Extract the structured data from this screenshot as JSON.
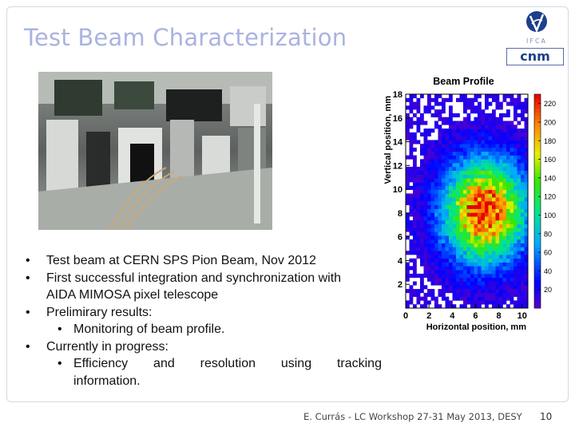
{
  "slide": {
    "title": "Test Beam Characterization",
    "footer": "E. Currás -  LC Workshop 27-31 May 2013, DESY",
    "page_number": "10",
    "logos": {
      "top": "IFCA",
      "bottom": "cnm"
    }
  },
  "bullets": [
    {
      "lines": [
        "Test beam at CERN SPS Pion Beam, Nov 2012"
      ]
    },
    {
      "lines": [
        "First successful integration and synchronization with",
        "AIDA MIMOSA pixel telescope"
      ]
    },
    {
      "lines": [
        "Prelimirary results:"
      ]
    },
    {
      "sub": true,
      "lines": [
        "Monitoring of beam profile."
      ]
    },
    {
      "lines": [
        "Currently in progress:"
      ]
    },
    {
      "sub": true,
      "words": [
        "Efficiency",
        "and",
        "resolution",
        "using",
        "tracking"
      ],
      "lines": [
        "information."
      ]
    }
  ],
  "bullet_symbol": "•",
  "chart_data": {
    "type": "heatmap",
    "title": "Beam Profile",
    "xlabel": "Horizontal position, mm",
    "ylabel": "Vertical position, mm",
    "xlim": [
      0,
      10.5
    ],
    "ylim": [
      0,
      18
    ],
    "x_ticks": [
      0,
      2,
      4,
      6,
      8,
      10
    ],
    "y_ticks": [
      2,
      4,
      6,
      8,
      10,
      12,
      14,
      16,
      18
    ],
    "z_ticks": [
      20,
      40,
      60,
      80,
      100,
      120,
      140,
      160,
      180,
      200,
      220
    ],
    "zlim": [
      0,
      230
    ],
    "peak": {
      "x": 6.8,
      "y": 8.2,
      "value": 220
    },
    "sigma": {
      "x": 2.3,
      "y": 2.8
    }
  }
}
